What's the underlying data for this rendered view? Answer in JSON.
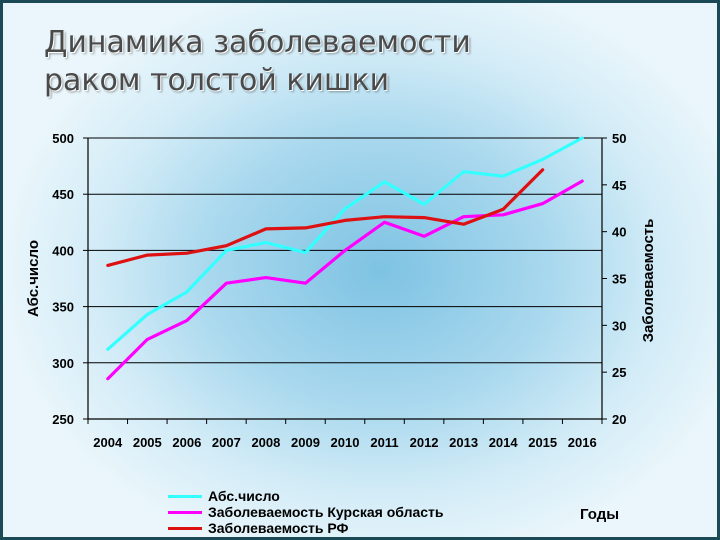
{
  "title_lines": [
    "Динамика заболеваемости",
    "раком толстой кишки"
  ],
  "chart_data": {
    "type": "line",
    "x": [
      "2004",
      "2005",
      "2006",
      "2007",
      "2008",
      "2009",
      "2010",
      "2011",
      "2012",
      "2013",
      "2014",
      "2015",
      "2016"
    ],
    "xlabel": "Годы",
    "ylabel_left": "Абс.число",
    "ylabel_right": "Заболеваемость",
    "ylim_left": [
      250,
      500
    ],
    "yticks_left": [
      250,
      300,
      350,
      400,
      450,
      500
    ],
    "ylim_right": [
      20,
      50
    ],
    "yticks_right": [
      20,
      25,
      30,
      35,
      40,
      45,
      50
    ],
    "grid": true,
    "legend_position": "bottom-left",
    "series": [
      {
        "name": "Абс.число",
        "axis": "left",
        "color": "#33ffff",
        "values": [
          312,
          343,
          363,
          400,
          407,
          398,
          437,
          461,
          441,
          470,
          466,
          481,
          504
        ]
      },
      {
        "name": "Заболеваемость Курская область",
        "axis": "right",
        "color": "#ff00ff",
        "values": [
          24.3,
          28.5,
          30.5,
          34.5,
          35.1,
          34.5,
          38.0,
          41.0,
          39.5,
          41.6,
          41.8,
          43.0,
          45.4
        ]
      },
      {
        "name": "Заболеваемость РФ",
        "axis": "right",
        "color": "#dd1111",
        "values": [
          36.4,
          37.5,
          37.7,
          38.5,
          40.3,
          40.4,
          41.2,
          41.6,
          41.5,
          40.8,
          42.4,
          46.6,
          null
        ]
      }
    ]
  }
}
